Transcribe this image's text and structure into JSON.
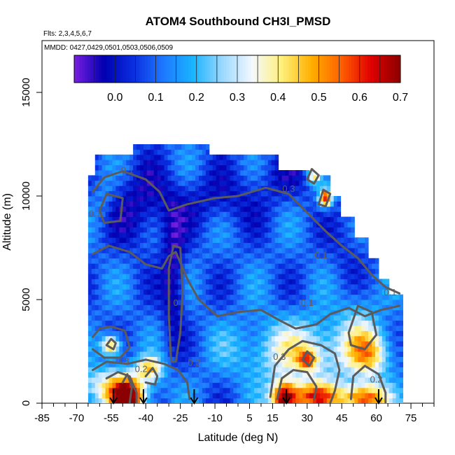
{
  "chart_data": {
    "type": "heatmap",
    "title": "ATOM4 Southbound CH3I_PMSD",
    "flights_note": "Flts: 2,3,4,5,6,7",
    "dates_note": "MMDD: 0427,0429,0501,0503,0506,0509",
    "xlabel": "Latitude (deg N)",
    "ylabel": "Altitude (m)",
    "xlim": [
      -85,
      85
    ],
    "ylim": [
      0,
      17500
    ],
    "x_ticks": [
      -85,
      -70,
      -55,
      -40,
      -25,
      -10,
      5,
      15,
      30,
      45,
      60,
      75
    ],
    "y_ticks": [
      0,
      5000,
      10000,
      15000
    ],
    "colorbar": {
      "min": -0.1,
      "max": 0.7,
      "ticks": [
        0.0,
        0.1,
        0.2,
        0.3,
        0.4,
        0.5,
        0.6,
        0.7
      ],
      "colors": [
        "#7a1fe0",
        "#0000b0",
        "#0a2ee0",
        "#1e78ff",
        "#19b4ff",
        "#9bd8ff",
        "#f4f8ff",
        "#fff07a",
        "#ffb000",
        "#ff6000",
        "#e00000",
        "#8b0000"
      ]
    },
    "contour_labels": [
      "0.1",
      "0.1",
      "0.1",
      "0.1",
      "0.1",
      "0.2",
      "0.2",
      "0.2",
      "0.3",
      "0.3",
      "0.3",
      "0"
    ],
    "arrow_latitudes": [
      -54,
      -41,
      -19,
      21,
      61
    ],
    "grid": false,
    "legend": "colorbar top"
  }
}
